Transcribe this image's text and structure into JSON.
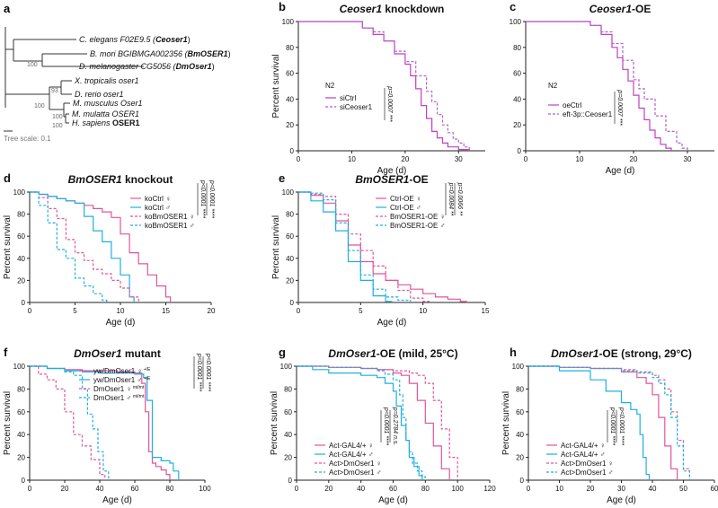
{
  "figure": {
    "tree_panel": {
      "letter": "a",
      "species": [
        {
          "prefix": "C. elegans F02E9.5 (",
          "gene": "Ceoser1",
          "suffix": ")"
        },
        {
          "prefix": "B. mori BGIBMGA002356 (",
          "gene": "BmOSER1",
          "suffix": ")"
        },
        {
          "prefix": "D. melanogaster CG5056 (",
          "gene": "DmOser1",
          "suffix": ")"
        },
        {
          "prefix": "X. tropicalis oser1",
          "gene": "",
          "suffix": ""
        },
        {
          "prefix": "D. rerio oser1",
          "gene": "",
          "suffix": ""
        },
        {
          "prefix": "M. musculus Oser1",
          "gene": "",
          "suffix": ""
        },
        {
          "prefix": "M. mulatta OSER1",
          "gene": "",
          "suffix": ""
        },
        {
          "prefix": "H. sapiens ",
          "gene": "OSER1",
          "suffix": ""
        }
      ],
      "bootstraps": [
        "100",
        "93",
        "100",
        "100",
        "100"
      ],
      "scale_label": "Tree scale: 0.1"
    },
    "common": {
      "ylabel": "Percent survival",
      "xlabel": "Age (d)",
      "strain": "N2"
    }
  },
  "chart_data": [
    {
      "id": "b",
      "type": "line",
      "letter": "b",
      "title_gene": "Ceoser1",
      "title_rest": " knockdown",
      "xlabel": "Age (d)",
      "ylabel": "Percent survival",
      "xlim": [
        0,
        35
      ],
      "ylim": [
        0,
        100
      ],
      "xticks": [
        0,
        10,
        20,
        30
      ],
      "yticks": [
        0,
        20,
        40,
        60,
        80,
        100
      ],
      "strain_label": "N2",
      "series": [
        {
          "name": "siCtrl",
          "color": "#c040c0",
          "dash": false,
          "x": [
            0,
            10,
            12,
            14,
            16,
            18,
            20,
            21,
            22,
            23,
            24,
            25,
            26,
            27,
            28,
            30,
            32
          ],
          "y": [
            100,
            100,
            95,
            90,
            85,
            75,
            67,
            58,
            48,
            35,
            25,
            15,
            10,
            6,
            3,
            1,
            0
          ]
        },
        {
          "name": "siCeoser1",
          "color": "#b060d0",
          "dash": true,
          "x": [
            0,
            10,
            12,
            14,
            16,
            18,
            20,
            22,
            24,
            25,
            26,
            27,
            28,
            29,
            30,
            31,
            32
          ],
          "y": [
            100,
            100,
            95,
            92,
            85,
            77,
            69,
            58,
            46,
            38,
            28,
            20,
            14,
            9,
            6,
            3,
            0
          ]
        }
      ],
      "pvalues": [
        {
          "p": "p=0.0007",
          "stars": "***"
        }
      ]
    },
    {
      "id": "c",
      "type": "line",
      "letter": "c",
      "title_gene": "Ceoser1",
      "title_rest": "-OE",
      "xlabel": "Age (d)",
      "ylabel": "",
      "xlim": [
        0,
        35
      ],
      "ylim": [
        0,
        100
      ],
      "xticks": [
        0,
        10,
        20,
        30
      ],
      "yticks": [
        0,
        20,
        40,
        60,
        80,
        100
      ],
      "strain_label": "N2",
      "series": [
        {
          "name": "oeCtrl",
          "color": "#c040c0",
          "dash": false,
          "x": [
            0,
            10,
            12,
            14,
            16,
            17,
            18,
            19,
            20,
            21,
            22,
            23,
            24,
            25,
            26,
            27
          ],
          "y": [
            100,
            100,
            97,
            90,
            80,
            72,
            63,
            54,
            43,
            33,
            24,
            16,
            10,
            5,
            2,
            0
          ]
        },
        {
          "name": "eft-3p::Ceoser1",
          "color": "#b060d0",
          "dash": true,
          "x": [
            0,
            10,
            12,
            14,
            16,
            18,
            20,
            21,
            22,
            24,
            26,
            28,
            29,
            30
          ],
          "y": [
            100,
            100,
            97,
            92,
            83,
            70,
            55,
            48,
            40,
            27,
            15,
            6,
            2,
            0
          ]
        }
      ],
      "pvalues": [
        {
          "p": "p=0.0007",
          "stars": "***"
        }
      ]
    },
    {
      "id": "d",
      "type": "line",
      "letter": "d",
      "title_gene": "BmOSER1",
      "title_rest": " knockout",
      "xlabel": "Age (d)",
      "ylabel": "Percent survival",
      "xlim": [
        0,
        20
      ],
      "ylim": [
        0,
        100
      ],
      "xticks": [
        0,
        5,
        10,
        15,
        20
      ],
      "yticks": [
        0,
        20,
        40,
        60,
        80,
        100
      ],
      "series": [
        {
          "name": "koCtrl ♀",
          "color": "#e0559a",
          "dash": false,
          "x": [
            0,
            1,
            2,
            3,
            4,
            5,
            6,
            7,
            8,
            9,
            10,
            11,
            12,
            13,
            14,
            15,
            15.5
          ],
          "y": [
            100,
            98,
            96,
            94,
            92,
            90,
            88,
            85,
            82,
            77,
            62,
            45,
            35,
            25,
            15,
            5,
            0
          ]
        },
        {
          "name": "koCtrl ♂",
          "color": "#1fb0e0",
          "dash": false,
          "x": [
            0,
            1,
            2,
            3,
            4,
            5,
            6,
            7,
            8,
            9,
            10,
            11,
            11.5
          ],
          "y": [
            100,
            98,
            96,
            94,
            92,
            90,
            78,
            65,
            55,
            40,
            25,
            5,
            0
          ]
        },
        {
          "name": "koBmOSER1 ♀",
          "color": "#e0559a",
          "dash": true,
          "x": [
            0,
            1,
            2,
            3,
            4,
            5,
            6,
            7,
            8,
            9,
            10,
            11,
            12
          ],
          "y": [
            100,
            95,
            85,
            76,
            57,
            45,
            38,
            30,
            26,
            20,
            13,
            5,
            0
          ]
        },
        {
          "name": "koBmOSER1 ♂",
          "color": "#1fb0e0",
          "dash": true,
          "x": [
            0,
            1,
            2,
            3,
            4,
            5,
            6,
            7,
            8,
            8.5
          ],
          "y": [
            100,
            88,
            72,
            48,
            40,
            22,
            15,
            8,
            2,
            0
          ]
        }
      ],
      "pvalues": [
        {
          "p": "p<0.0001",
          "stars": "****"
        },
        {
          "p": "p<0.0001",
          "stars": "****"
        }
      ]
    },
    {
      "id": "e",
      "type": "line",
      "letter": "e",
      "title_gene": "BmOSER1",
      "title_rest": "-OE",
      "xlabel": "Age (d)",
      "ylabel": "Percent survival",
      "xlim": [
        0,
        15
      ],
      "ylim": [
        0,
        100
      ],
      "xticks": [
        0,
        5,
        10,
        15
      ],
      "yticks": [
        0,
        20,
        40,
        60,
        80,
        100
      ],
      "series": [
        {
          "name": "Ctrl-OE ♀",
          "color": "#e0559a",
          "dash": false,
          "x": [
            0,
            1,
            2,
            3,
            4,
            5,
            6,
            7,
            8,
            9,
            10,
            11,
            12,
            13,
            13.5
          ],
          "y": [
            100,
            97,
            90,
            74,
            52,
            37,
            26,
            20,
            16,
            12,
            8,
            5,
            3,
            1,
            0
          ]
        },
        {
          "name": "Ctrl-OE ♂",
          "color": "#1fb0e0",
          "dash": false,
          "x": [
            0,
            1,
            2,
            3,
            4,
            5,
            6,
            7,
            7.5
          ],
          "y": [
            100,
            92,
            82,
            65,
            37,
            20,
            6,
            1,
            0
          ]
        },
        {
          "name": "BmOSER1-OE ♀",
          "color": "#e0559a",
          "dash": true,
          "x": [
            0,
            1,
            2,
            3,
            4,
            5,
            6,
            7,
            8,
            9,
            10,
            10.5
          ],
          "y": [
            100,
            98,
            96,
            80,
            62,
            47,
            33,
            20,
            11,
            4,
            1,
            0
          ]
        },
        {
          "name": "BmOSER1-OE ♂",
          "color": "#1fb0e0",
          "dash": true,
          "x": [
            0,
            1,
            2,
            3,
            4,
            5,
            6,
            7,
            8,
            9
          ],
          "y": [
            100,
            99,
            93,
            72,
            47,
            25,
            12,
            5,
            2,
            0
          ]
        }
      ],
      "pvalues": [
        {
          "p": "p=0.0084",
          "stars": "**"
        },
        {
          "p": "p=0.0066",
          "stars": "**"
        }
      ]
    },
    {
      "id": "f",
      "type": "line",
      "letter": "f",
      "title_gene": "DmOser1",
      "title_rest": " mutant",
      "xlabel": "Age (d)",
      "ylabel": "Percent survival",
      "xlim": [
        0,
        100
      ],
      "ylim": [
        0,
        100
      ],
      "xticks": [
        0,
        20,
        40,
        60,
        80,
        100
      ],
      "yticks": [
        0,
        20,
        40,
        60,
        80,
        100
      ],
      "series": [
        {
          "name": "yw/DmOser1 ♀",
          "sup": "+/E",
          "color": "#e0559a",
          "dash": false,
          "x": [
            0,
            10,
            20,
            30,
            40,
            50,
            60,
            64,
            66,
            68,
            70,
            72,
            75,
            78,
            80
          ],
          "y": [
            100,
            98,
            97,
            96,
            96,
            95,
            94,
            85,
            60,
            25,
            15,
            12,
            9,
            5,
            0
          ]
        },
        {
          "name": "yw/DmOser1 ♂",
          "sup": "+/E",
          "color": "#1fb0e0",
          "dash": false,
          "x": [
            0,
            10,
            20,
            30,
            40,
            50,
            60,
            65,
            67,
            70,
            75,
            80,
            82,
            85
          ],
          "y": [
            100,
            98,
            96,
            95,
            94,
            94,
            93,
            90,
            70,
            20,
            17,
            15,
            8,
            0
          ]
        },
        {
          "name": "DmOser1 ♀",
          "sup": "mt/mt",
          "color": "#e0559a",
          "dash": true,
          "x": [
            0,
            5,
            10,
            15,
            20,
            25,
            30,
            35,
            40,
            43
          ],
          "y": [
            100,
            93,
            88,
            80,
            60,
            40,
            30,
            18,
            5,
            0
          ]
        },
        {
          "name": "DmOser1 ♂",
          "sup": "mt/mt",
          "color": "#1fb0e0",
          "dash": true,
          "x": [
            0,
            10,
            20,
            25,
            30,
            33,
            36,
            39,
            42,
            45
          ],
          "y": [
            100,
            98,
            95,
            92,
            80,
            58,
            45,
            25,
            8,
            0
          ]
        }
      ],
      "pvalues": [
        {
          "p": "p<0.0001",
          "stars": "****"
        },
        {
          "p": "p<0.0001",
          "stars": "****"
        }
      ]
    },
    {
      "id": "g",
      "type": "line",
      "letter": "g",
      "title_gene": "DmOser1",
      "title_rest": "-OE (mild, 25°C)",
      "xlabel": "Age (d)",
      "ylabel": "Percent survival",
      "xlim": [
        0,
        120
      ],
      "ylim": [
        0,
        100
      ],
      "xticks": [
        0,
        20,
        40,
        60,
        80,
        100,
        120
      ],
      "yticks": [
        0,
        20,
        40,
        60,
        80,
        100
      ],
      "series": [
        {
          "name": "Act-GAL4/+ ♀",
          "color": "#e0559a",
          "dash": false,
          "x": [
            0,
            20,
            40,
            50,
            60,
            65,
            70,
            75,
            80,
            85,
            90,
            95
          ],
          "y": [
            100,
            99,
            98,
            97,
            94,
            92,
            85,
            70,
            50,
            30,
            10,
            0
          ]
        },
        {
          "name": "Act-GAL4/+ ♂",
          "color": "#1fb0e0",
          "dash": false,
          "x": [
            0,
            10,
            20,
            40,
            50,
            55,
            60,
            62,
            65,
            68,
            70,
            73,
            76,
            78
          ],
          "y": [
            100,
            97,
            94,
            92,
            90,
            85,
            78,
            65,
            48,
            35,
            20,
            12,
            4,
            0
          ]
        },
        {
          "name": "Act>DmOser1 ♀",
          "color": "#e0559a",
          "dash": true,
          "x": [
            0,
            20,
            40,
            50,
            60,
            70,
            75,
            80,
            85,
            90,
            95,
            100
          ],
          "y": [
            100,
            99,
            98,
            97,
            96,
            94,
            92,
            85,
            70,
            45,
            20,
            0
          ]
        },
        {
          "name": "Act>DmOser1 ♂",
          "color": "#1fb0e0",
          "dash": true,
          "x": [
            0,
            20,
            40,
            50,
            55,
            60,
            64,
            66,
            68,
            70,
            72,
            75,
            78,
            80
          ],
          "y": [
            100,
            99,
            98,
            96,
            93,
            88,
            75,
            55,
            35,
            25,
            15,
            8,
            3,
            0
          ]
        }
      ],
      "pvalues": [
        {
          "p": "p<0.0001",
          "stars": "****"
        },
        {
          "p": "p=0.2784",
          "stars": "n.s."
        }
      ]
    },
    {
      "id": "h",
      "type": "line",
      "letter": "h",
      "title_gene": "DmOser1",
      "title_rest": "-OE (strong, 29°C)",
      "xlabel": "Age (d)",
      "ylabel": "Percent survival",
      "xlim": [
        0,
        60
      ],
      "ylim": [
        0,
        100
      ],
      "xticks": [
        0,
        10,
        20,
        30,
        40,
        50,
        60
      ],
      "yticks": [
        0,
        20,
        40,
        60,
        80,
        100
      ],
      "series": [
        {
          "name": "Act-GAL4/+ ♀",
          "color": "#e0559a",
          "dash": false,
          "x": [
            0,
            10,
            20,
            30,
            35,
            38,
            40,
            42,
            44,
            46,
            48
          ],
          "y": [
            100,
            99,
            98,
            95,
            90,
            85,
            75,
            55,
            30,
            10,
            0
          ]
        },
        {
          "name": "Act-GAL4/+ ♂",
          "color": "#1fb0e0",
          "dash": false,
          "x": [
            0,
            10,
            20,
            25,
            30,
            33,
            35,
            36,
            37,
            38,
            39
          ],
          "y": [
            100,
            96,
            88,
            78,
            68,
            62,
            58,
            40,
            20,
            5,
            0
          ]
        },
        {
          "name": "Act>DmOser1 ♀",
          "color": "#e0559a",
          "dash": true,
          "x": [
            0,
            10,
            20,
            30,
            35,
            40,
            42,
            44,
            46,
            48,
            50,
            52
          ],
          "y": [
            100,
            99,
            98,
            97,
            95,
            92,
            88,
            80,
            60,
            35,
            10,
            0
          ]
        },
        {
          "name": "Act>DmOser1 ♂",
          "color": "#1fb0e0",
          "dash": true,
          "x": [
            0,
            10,
            20,
            30,
            35,
            40,
            42,
            44,
            46,
            48,
            50,
            52
          ],
          "y": [
            100,
            99,
            98,
            96,
            94,
            90,
            85,
            75,
            55,
            30,
            8,
            0
          ]
        }
      ],
      "pvalues": [
        {
          "p": "p<0.0001",
          "stars": "****"
        },
        {
          "p": "p<0.0001",
          "stars": "****"
        }
      ]
    }
  ]
}
